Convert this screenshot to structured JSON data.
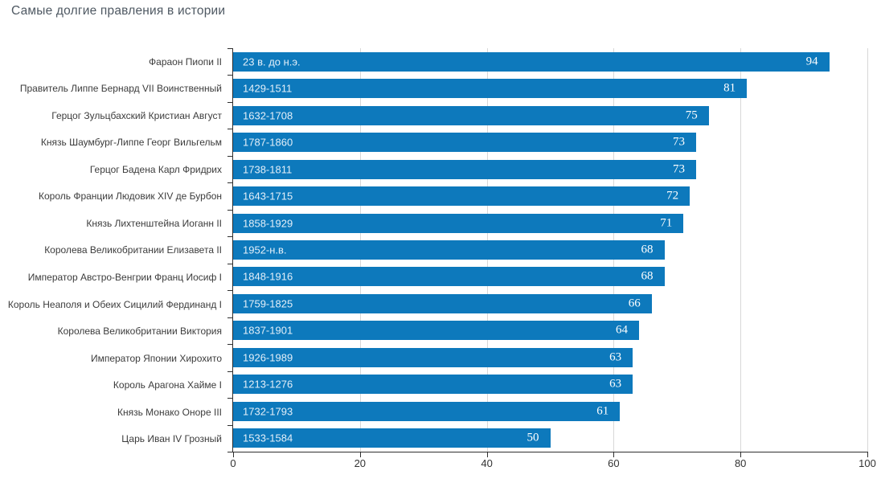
{
  "chart_data": {
    "type": "bar",
    "orientation": "horizontal",
    "title": "Самые долгие правления в истории",
    "categories": [
      "Фараон Пиопи II",
      "Правитель Липпе Бернард VII Воинственный",
      "Герцог Зульцбахский Кристиан Август",
      "Князь Шаумбург-Липпе Георг Вильгельм",
      "Герцог Бадена Карл Фридрих",
      "Король Франции Людовик XIV де Бурбон",
      "Князь Лихтенштейна Иоганн II",
      "Королева Великобритании Елизавета II",
      "Император Австро-Венгрии Франц Иосиф I",
      "Король Неаполя и Обеих Сицилий Фердинанд I",
      "Королева Великобритании Виктория",
      "Император Японии Хирохито",
      "Король Арагона Хайме I",
      "Князь Монако Оноре III",
      "Царь Иван IV Грозный"
    ],
    "values": [
      94,
      81,
      75,
      73,
      73,
      72,
      71,
      68,
      68,
      66,
      64,
      63,
      63,
      61,
      50
    ],
    "bar_labels": [
      "23 в. до н.э.",
      "1429-1511",
      "1632-1708",
      "1787-1860",
      "1738-1811",
      "1643-1715",
      "1858-1929",
      "1952-н.в.",
      "1848-1916",
      "1759-1825",
      "1837-1901",
      "1926-1989",
      "1213-1276",
      "1732-1793",
      "1533-1584"
    ],
    "xlim": [
      0,
      100
    ],
    "x_ticks": [
      0,
      20,
      40,
      60,
      80,
      100
    ],
    "grid": "vertical",
    "legend": "none",
    "value_label_position": "inside-end",
    "bar_label_position": "inside-start"
  },
  "colors": {
    "bar": "#0d79bc",
    "bar_label_text": "#e3eff9",
    "value_text": "#ffffff",
    "gridline": "#d8d8d8",
    "axis": "#2f2f2f",
    "axis_label": "#333333",
    "category_label": "#3c3c3c",
    "title": "#4e5862"
  }
}
